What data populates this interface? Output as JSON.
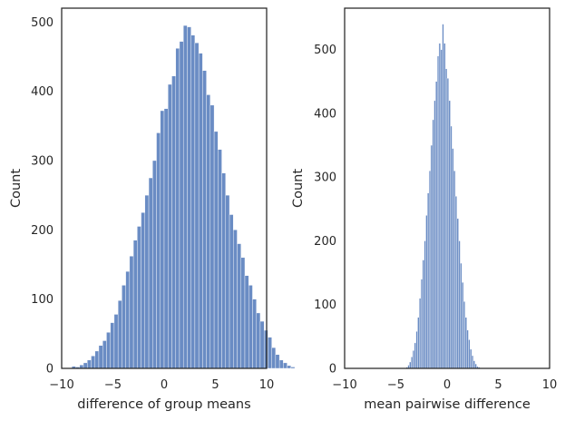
{
  "chart_data": [
    {
      "type": "bar",
      "title": "",
      "xlabel": "difference of group means",
      "ylabel": "Count",
      "xlim": [
        -10,
        10
      ],
      "ylim": [
        0,
        520
      ],
      "xticks": [
        -10,
        -5,
        0,
        5,
        10
      ],
      "yticks": [
        0,
        100,
        200,
        300,
        400,
        500
      ],
      "xtick_labels": [
        "−10",
        "−5",
        "0",
        "5",
        "10"
      ],
      "ytick_labels": [
        "0",
        "100",
        "200",
        "300",
        "400",
        "500"
      ],
      "grid": false,
      "legend": "none",
      "bar_color": "#6a8cc4",
      "bin_start": -9.0,
      "bin_width": 0.375,
      "values": [
        3,
        2,
        5,
        8,
        12,
        18,
        25,
        33,
        40,
        52,
        66,
        78,
        98,
        120,
        140,
        162,
        185,
        205,
        225,
        250,
        275,
        300,
        340,
        372,
        375,
        410,
        422,
        462,
        472,
        495,
        493,
        481,
        470,
        455,
        430,
        395,
        380,
        342,
        316,
        282,
        250,
        222,
        200,
        180,
        160,
        134,
        120,
        100,
        80,
        68,
        55,
        45,
        30,
        20,
        12,
        8,
        4,
        2
      ]
    },
    {
      "type": "bar",
      "title": "",
      "xlabel": "mean pairwise difference",
      "ylabel": "Count",
      "xlim": [
        -10,
        10
      ],
      "ylim": [
        0,
        565
      ],
      "xticks": [
        -10,
        -5,
        0,
        5,
        10
      ],
      "yticks": [
        0,
        100,
        200,
        300,
        400,
        500
      ],
      "xtick_labels": [
        "−10",
        "−5",
        "0",
        "5",
        "10"
      ],
      "ytick_labels": [
        "0",
        "100",
        "200",
        "300",
        "400",
        "500"
      ],
      "grid": false,
      "legend": "none",
      "bar_color": "#6a8cc4",
      "bin_start": -4.0,
      "bin_width": 0.16,
      "values": [
        2,
        5,
        10,
        18,
        28,
        40,
        58,
        80,
        110,
        140,
        170,
        200,
        240,
        275,
        310,
        350,
        390,
        420,
        450,
        490,
        510,
        500,
        540,
        510,
        470,
        455,
        420,
        380,
        345,
        310,
        270,
        235,
        200,
        165,
        135,
        105,
        80,
        60,
        45,
        30,
        20,
        12,
        7,
        3,
        2
      ]
    }
  ]
}
